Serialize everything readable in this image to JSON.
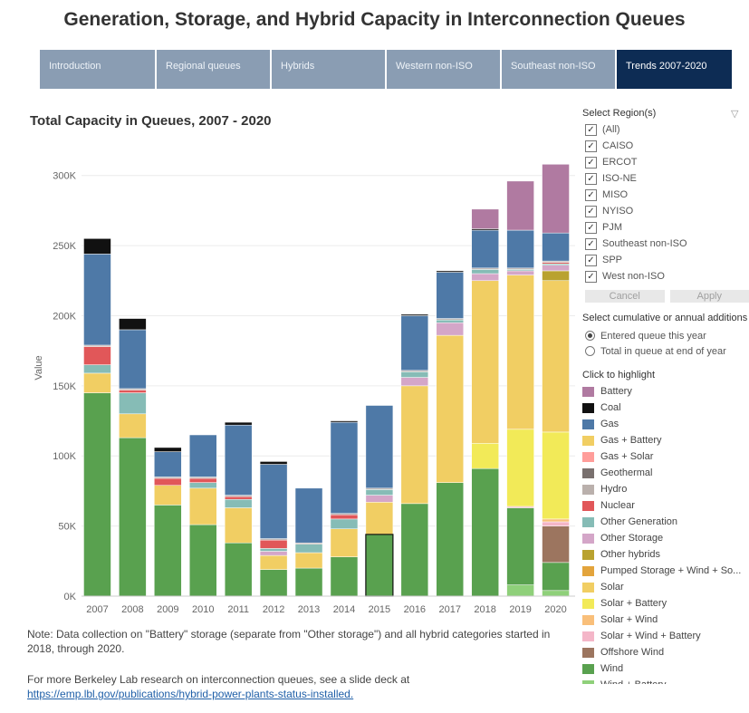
{
  "page_title": "Generation, Storage, and Hybrid Capacity in Interconnection Queues",
  "tabs": [
    {
      "label": "Introduction",
      "w": 129,
      "active": false
    },
    {
      "label": "Regional queues",
      "w": 129,
      "active": false
    },
    {
      "label": "Hybrids",
      "w": 129,
      "active": false
    },
    {
      "label": "Western non-ISO",
      "w": 129,
      "active": false
    },
    {
      "label": "Southeast non-ISO",
      "w": 129,
      "active": false
    },
    {
      "label": "Trends 2007-2020",
      "w": 129,
      "active": true
    }
  ],
  "region_filter": {
    "title": "Select Region(s)",
    "options": [
      {
        "label": "(All)",
        "checked": true
      },
      {
        "label": "CAISO",
        "checked": true
      },
      {
        "label": "ERCOT",
        "checked": true
      },
      {
        "label": "ISO-NE",
        "checked": true
      },
      {
        "label": "MISO",
        "checked": true
      },
      {
        "label": "NYISO",
        "checked": true
      },
      {
        "label": "PJM",
        "checked": true
      },
      {
        "label": "Southeast non-ISO",
        "checked": true
      },
      {
        "label": "SPP",
        "checked": true
      },
      {
        "label": "West non-ISO",
        "checked": true
      }
    ],
    "cancel_label": "Cancel",
    "apply_label": "Apply"
  },
  "mode": {
    "title": "Select cumulative or annual additions",
    "options": [
      {
        "label": "Entered queue this year",
        "selected": true
      },
      {
        "label": "Total in queue at end of year",
        "selected": false
      }
    ]
  },
  "legend_title": "Click to highlight",
  "note": "Note:  Data collection on \"Battery\" storage (separate from \"Other storage\") and all hybrid categories started in 2018, through 2020.",
  "more_text": "For more Berkeley Lab research on interconnection queues, see a slide deck at",
  "more_link": "https://emp.lbl.gov/publications/hybrid-power-plants-status-installed.",
  "chart_data": {
    "type": "bar",
    "stacked": true,
    "title": "Total Capacity in Queues, 2007 - 2020",
    "xlabel": "",
    "ylabel": "Value",
    "ylim": [
      0,
      325000
    ],
    "yticks": [
      0,
      50000,
      100000,
      150000,
      200000,
      250000,
      300000
    ],
    "ytick_labels": [
      "0K",
      "50K",
      "100K",
      "150K",
      "200K",
      "250K",
      "300K"
    ],
    "grid": true,
    "highlight_category": "2015",
    "categories": [
      "2007",
      "2008",
      "2009",
      "2010",
      "2011",
      "2012",
      "2013",
      "2014",
      "2015",
      "2016",
      "2017",
      "2018",
      "2019",
      "2020"
    ],
    "series": [
      {
        "name": "Wind + Battery",
        "color": "#8fd07a",
        "values": [
          0,
          0,
          0,
          0,
          0,
          0,
          0,
          0,
          0,
          0,
          0,
          0,
          8000,
          4000
        ]
      },
      {
        "name": "Wind",
        "color": "#59a14f",
        "values": [
          145000,
          113000,
          65000,
          51000,
          38000,
          19000,
          20000,
          28000,
          44000,
          66000,
          81000,
          91000,
          55000,
          20000
        ]
      },
      {
        "name": "Offshore Wind",
        "color": "#9c755f",
        "values": [
          0,
          0,
          0,
          0,
          0,
          0,
          0,
          0,
          0,
          0,
          0,
          0,
          0,
          26000
        ]
      },
      {
        "name": "Solar + Wind + Battery",
        "color": "#f4b6c8",
        "values": [
          0,
          0,
          0,
          0,
          0,
          0,
          0,
          0,
          0,
          0,
          0,
          0,
          1000,
          3000
        ]
      },
      {
        "name": "Solar + Wind",
        "color": "#f9bf7a",
        "values": [
          0,
          0,
          0,
          0,
          0,
          0,
          0,
          0,
          0,
          0,
          0,
          0,
          0,
          2000
        ]
      },
      {
        "name": "Solar + Battery",
        "color": "#f2ea58",
        "values": [
          0,
          0,
          0,
          0,
          0,
          0,
          0,
          0,
          0,
          0,
          0,
          18000,
          55000,
          62000
        ]
      },
      {
        "name": "Solar",
        "color": "#f1ce63",
        "values": [
          14000,
          17000,
          14000,
          26000,
          25000,
          10000,
          11000,
          20000,
          23000,
          84000,
          105000,
          116000,
          110000,
          108000
        ]
      },
      {
        "name": "Pumped Storage + Wind + Solar",
        "color": "#e3a43c",
        "values": [
          0,
          0,
          0,
          0,
          0,
          0,
          0,
          0,
          0,
          0,
          0,
          0,
          0,
          0
        ]
      },
      {
        "name": "Other hybrids",
        "color": "#b9a22f",
        "values": [
          0,
          0,
          0,
          0,
          0,
          0,
          0,
          0,
          0,
          0,
          0,
          0,
          0,
          7000
        ]
      },
      {
        "name": "Other Storage",
        "color": "#d4a6c8",
        "values": [
          0,
          0,
          0,
          0,
          0,
          3000,
          0,
          0,
          5000,
          6000,
          9000,
          5000,
          3000,
          4000
        ]
      },
      {
        "name": "Other Generation",
        "color": "#86bcb6",
        "values": [
          6000,
          15000,
          0,
          4000,
          6000,
          2000,
          6000,
          7000,
          4000,
          4000,
          2000,
          3000,
          1000,
          1000
        ]
      },
      {
        "name": "Nuclear",
        "color": "#e15759",
        "values": [
          13000,
          2000,
          5000,
          3000,
          2000,
          6000,
          0,
          3000,
          0,
          0,
          0,
          0,
          0,
          1000
        ]
      },
      {
        "name": "Hydro",
        "color": "#bab0ac",
        "values": [
          1000,
          1000,
          1000,
          1000,
          1000,
          1000,
          1000,
          1000,
          1000,
          1000,
          1000,
          1000,
          1000,
          1000
        ]
      },
      {
        "name": "Geothermal",
        "color": "#79706e",
        "values": [
          0,
          0,
          0,
          0,
          0,
          0,
          0,
          0,
          0,
          0,
          0,
          0,
          0,
          0
        ]
      },
      {
        "name": "Gas + Solar",
        "color": "#ff9d9a",
        "values": [
          0,
          0,
          0,
          0,
          0,
          0,
          0,
          0,
          0,
          0,
          0,
          0,
          0,
          0
        ]
      },
      {
        "name": "Gas + Battery",
        "color": "#f1ce63",
        "values": [
          0,
          0,
          0,
          0,
          0,
          0,
          0,
          0,
          0,
          0,
          0,
          0,
          0,
          0
        ]
      },
      {
        "name": "Gas",
        "color": "#4e79a7",
        "values": [
          65000,
          42000,
          18000,
          30000,
          50000,
          53000,
          39000,
          65000,
          59000,
          39000,
          33000,
          27000,
          27000,
          20000
        ]
      },
      {
        "name": "Coal",
        "color": "#111111",
        "values": [
          11000,
          8000,
          3000,
          0,
          2000,
          2000,
          0,
          1000,
          0,
          1000,
          1000,
          1000,
          0,
          0
        ]
      },
      {
        "name": "Battery",
        "color": "#b07aa1",
        "values": [
          0,
          0,
          0,
          0,
          0,
          0,
          0,
          0,
          0,
          0,
          0,
          14000,
          35000,
          49000
        ]
      }
    ]
  }
}
